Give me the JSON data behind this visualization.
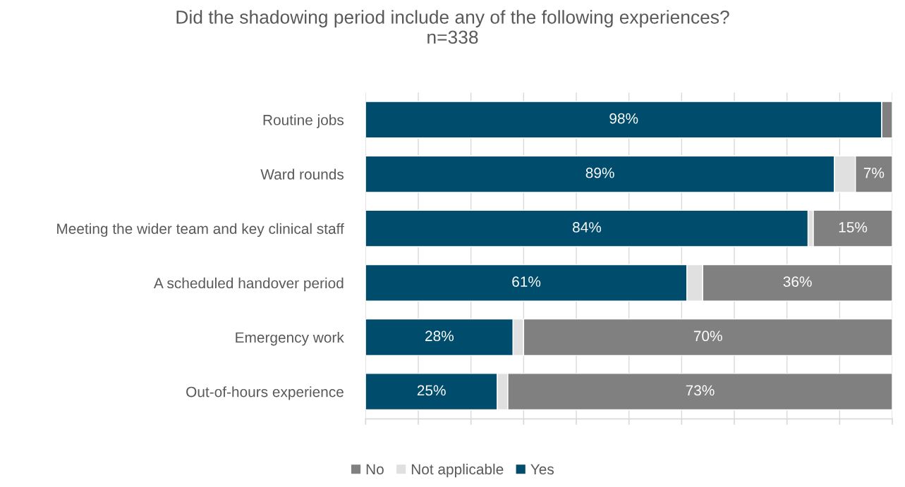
{
  "chart_data": {
    "type": "bar",
    "orientation": "horizontal",
    "stacked": true,
    "title": "Did the shadowing period include any of the following experiences?\nn=338",
    "categories": [
      "Routine jobs",
      "Ward rounds",
      "Meeting the wider team and key clinical staff",
      "A scheduled handover period",
      "Emergency work",
      "Out-of-hours experience"
    ],
    "series": [
      {
        "name": "Yes",
        "color": "#004c6d",
        "values": [
          98,
          89,
          84,
          61,
          28,
          25
        ],
        "value_labels": [
          "98%",
          "89%",
          "84%",
          "61%",
          "28%",
          "25%"
        ]
      },
      {
        "name": "Not applicable",
        "color": "#e0e0e0",
        "values": [
          0,
          4,
          1,
          3,
          2,
          2
        ],
        "value_labels": [
          null,
          null,
          null,
          null,
          null,
          null
        ]
      },
      {
        "name": "No",
        "color": "#808080",
        "values": [
          2,
          7,
          15,
          36,
          70,
          73
        ],
        "value_labels": [
          null,
          "7%",
          "15%",
          "36%",
          "70%",
          "73%"
        ]
      }
    ],
    "xlim": [
      0,
      100
    ],
    "xticks": [
      {
        "value": 0,
        "label": null
      },
      {
        "value": 10,
        "label": null
      },
      {
        "value": 20,
        "label": null
      },
      {
        "value": 30,
        "label": null
      },
      {
        "value": 40,
        "label": null
      },
      {
        "value": 50,
        "label": null
      },
      {
        "value": 60,
        "label": null
      },
      {
        "value": 70,
        "label": null
      },
      {
        "value": 80,
        "label": null
      },
      {
        "value": 90,
        "label": null
      },
      {
        "value": 100,
        "label": null
      }
    ],
    "tick_labels": "y",
    "grid": "x",
    "legend": "bottom"
  }
}
